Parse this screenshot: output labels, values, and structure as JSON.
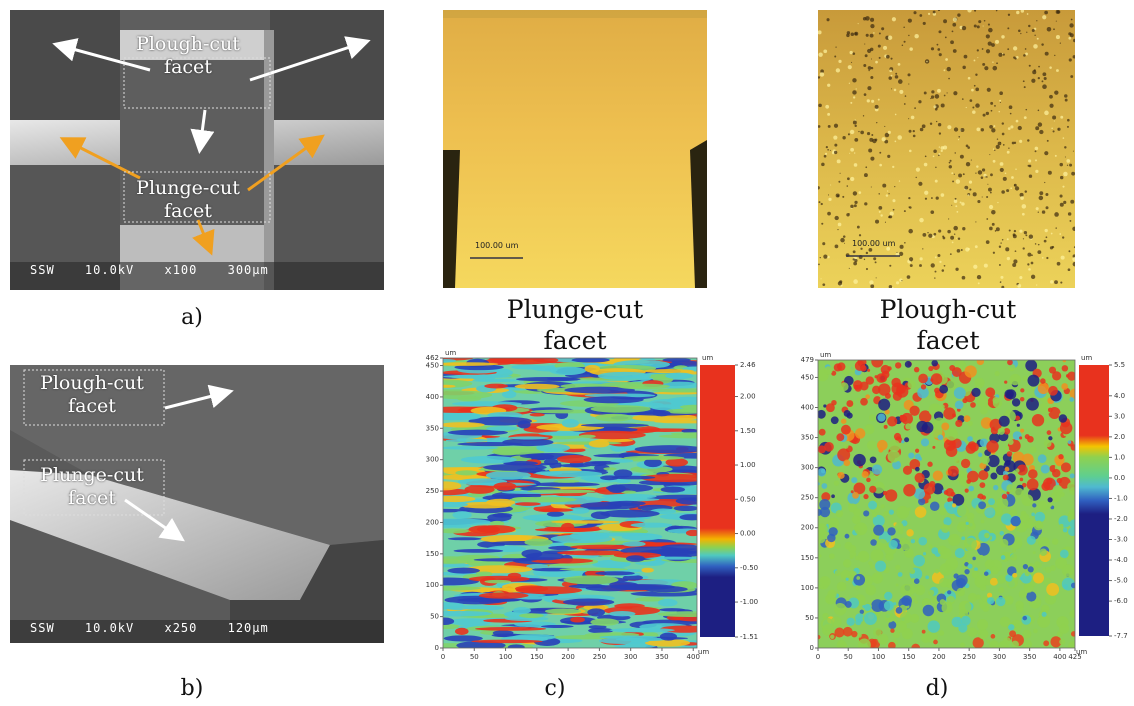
{
  "panels": {
    "a": {
      "label": "a)",
      "annotations": [
        "Plough-cut facet",
        "Plunge-cut facet"
      ],
      "info": "SSW 10.0kV x100 300μm"
    },
    "b": {
      "label": "b)",
      "annotations": [
        "Plough-cut facet",
        "Plunge-cut facet"
      ],
      "info": "SSW 10.0kV x250 120μm"
    },
    "c": {
      "label": "c)",
      "title": "Plunge-cut facet",
      "scale_bar": "100.00 um",
      "unit": "um",
      "xlim": [
        0,
        406
      ],
      "xticks": [
        0,
        50,
        100,
        150,
        200,
        250,
        300,
        350,
        400
      ],
      "ylim": [
        0,
        462
      ],
      "yticks": [
        0,
        50,
        100,
        150,
        200,
        250,
        300,
        350,
        400,
        450,
        462
      ],
      "colorbar": {
        "lim": [
          -1.51,
          2.46
        ],
        "ticks": [
          2.46,
          {
            "value": 2.0,
            "label": "2.00"
          },
          {
            "value": 1.5,
            "label": "1.50"
          },
          {
            "value": 1.0,
            "label": "1.00"
          },
          {
            "value": 0.5,
            "label": "0.50"
          },
          {
            "value": 0,
            "label": "0.00"
          },
          {
            "value": -0.5,
            "label": "-0.50"
          },
          {
            "value": -1.0,
            "label": "-1.00"
          },
          -1.51
        ]
      }
    },
    "d": {
      "label": "d)",
      "title": "Plough-cut facet",
      "scale_bar": "100.00 um",
      "unit": "um",
      "xlim": [
        0,
        425
      ],
      "xticks": [
        0,
        50,
        100,
        150,
        200,
        250,
        300,
        350,
        400,
        425
      ],
      "ylim": [
        0,
        479
      ],
      "yticks": [
        0,
        50,
        100,
        150,
        200,
        250,
        300,
        350,
        400,
        450,
        479
      ],
      "colorbar": {
        "lim": [
          -7.7,
          5.5
        ],
        "ticks": [
          5.5,
          {
            "value": 4.0,
            "label": "4.0"
          },
          {
            "value": 3.0,
            "label": "3.0"
          },
          {
            "value": 2.0,
            "label": "2.0"
          },
          {
            "value": 1.0,
            "label": "1.0"
          },
          {
            "value": 0,
            "label": "0.0"
          },
          {
            "value": -1.0,
            "label": "-1.0"
          },
          {
            "value": -2.0,
            "label": "-2.0"
          },
          {
            "value": -3.0,
            "label": "-3.0"
          },
          {
            "value": -4.0,
            "label": "-4.0"
          },
          {
            "value": -5.0,
            "label": "-5.0"
          },
          {
            "value": -6.0,
            "label": "-6.0"
          },
          -7.7
        ]
      }
    }
  }
}
